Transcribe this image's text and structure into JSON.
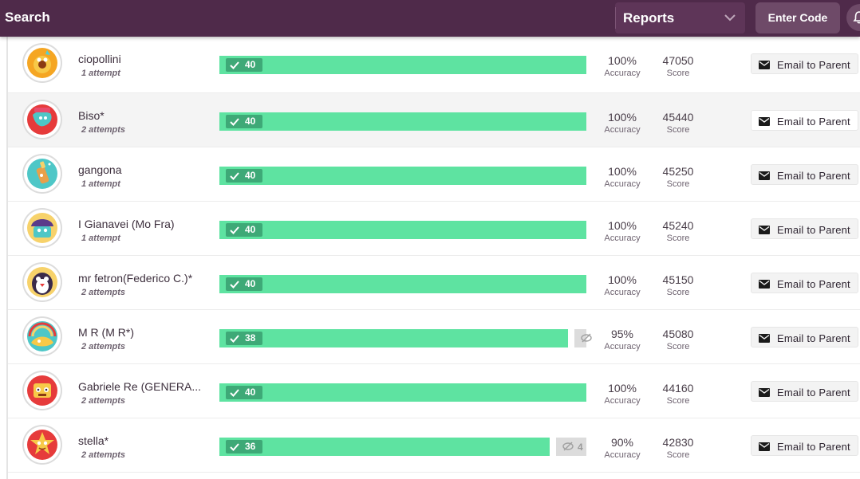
{
  "topbar": {
    "search_label": "Search",
    "reports_label": "Reports",
    "enter_code_label": "Enter Code",
    "colors": {
      "bar": "#4f2a4a",
      "button": "#6e4a68"
    }
  },
  "rows": [
    {
      "name": "ciopollini",
      "attempts": "1 attempt",
      "correct": "40",
      "correct_fraction": 1.0,
      "incorrect": "",
      "accuracy": "100%",
      "accuracy_label": "Accuracy",
      "score": "47050",
      "score_label": "Score",
      "email_label": "Email to Parent",
      "avatar_icon": "fireball-monster-icon"
    },
    {
      "name": "Biso*",
      "attempts": "2 attempts",
      "correct": "40",
      "correct_fraction": 1.0,
      "incorrect": "",
      "accuracy": "100%",
      "accuracy_label": "Accuracy",
      "score": "45440",
      "score_label": "Score",
      "email_label": "Email to Parent",
      "avatar_icon": "world-map-monster-icon"
    },
    {
      "name": "gangona",
      "attempts": "1 attempt",
      "correct": "40",
      "correct_fraction": 1.0,
      "incorrect": "",
      "accuracy": "100%",
      "accuracy_label": "Accuracy",
      "score": "45250",
      "score_label": "Score",
      "email_label": "Email to Parent",
      "avatar_icon": "bottle-monster-icon"
    },
    {
      "name": "I Gianavei (Mo Fra)",
      "attempts": "1 attempt",
      "correct": "40",
      "correct_fraction": 1.0,
      "incorrect": "",
      "accuracy": "100%",
      "accuracy_label": "Accuracy",
      "score": "45240",
      "score_label": "Score",
      "email_label": "Email to Parent",
      "avatar_icon": "cupcake-monster-icon"
    },
    {
      "name": "mr fetron(Federico C.)*",
      "attempts": "2 attempts",
      "correct": "40",
      "correct_fraction": 1.0,
      "incorrect": "",
      "accuracy": "100%",
      "accuracy_label": "Accuracy",
      "score": "45150",
      "score_label": "Score",
      "email_label": "Email to Parent",
      "avatar_icon": "penguin-monster-icon"
    },
    {
      "name": "M R (M R*)",
      "attempts": "2 attempts",
      "correct": "38",
      "correct_fraction": 0.95,
      "incorrect": "",
      "accuracy": "95%",
      "accuracy_label": "Accuracy",
      "score": "45080",
      "score_label": "Score",
      "email_label": "Email to Parent",
      "avatar_icon": "rainbow-monster-icon"
    },
    {
      "name": "Gabriele Re (GENERA...",
      "attempts": "2 attempts",
      "correct": "40",
      "correct_fraction": 1.0,
      "incorrect": "",
      "accuracy": "100%",
      "accuracy_label": "Accuracy",
      "score": "44160",
      "score_label": "Score",
      "email_label": "Email to Parent",
      "avatar_icon": "robot-monster-icon"
    },
    {
      "name": "stella*",
      "attempts": "2 attempts",
      "correct": "36",
      "correct_fraction": 0.9,
      "incorrect": "4",
      "accuracy": "90%",
      "accuracy_label": "Accuracy",
      "score": "42830",
      "score_label": "Score",
      "email_label": "Email to Parent",
      "avatar_icon": "star-monster-icon"
    }
  ],
  "colors": {
    "correct_bar": "#5ee3a1",
    "correct_badge": "#3ea977",
    "incorrect_bar": "#dcdcdc"
  }
}
